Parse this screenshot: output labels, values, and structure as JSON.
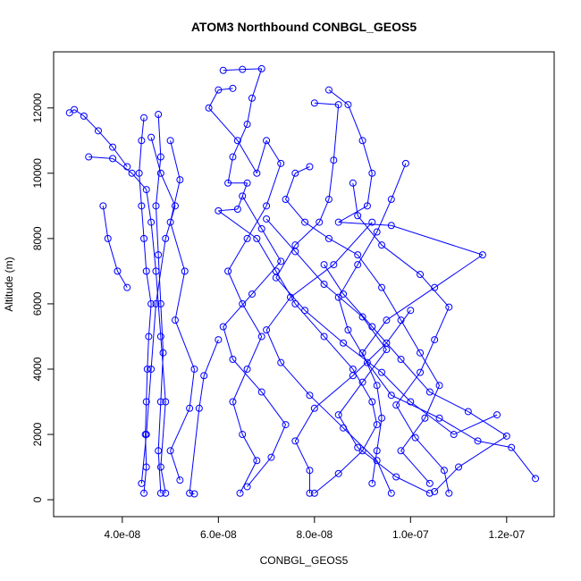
{
  "chart_data": {
    "type": "line",
    "title": "ATOM3 Northbound CONBGL_GEOS5",
    "xlabel": "CONBGL_GEOS5",
    "ylabel": "Altitude (m)",
    "xlim": [
      2.57e-08,
      1.299e-07
    ],
    "ylim": [
      -518,
      13718
    ],
    "xticks": [
      4e-08,
      6e-08,
      8e-08,
      1e-07,
      1.2e-07
    ],
    "xtick_labels": [
      "4.0e-08",
      "6.0e-08",
      "8.0e-08",
      "1.0e-07",
      "1.2e-07"
    ],
    "yticks": [
      0,
      2000,
      4000,
      6000,
      8000,
      10000,
      12000
    ],
    "ytick_labels": [
      "0",
      "2000",
      "4000",
      "6000",
      "8000",
      "10000",
      "12000"
    ],
    "grid": false,
    "marker": "open-circle",
    "color": "#0000ff",
    "profiles": [
      [
        [
          4.45e-08,
          200
        ],
        [
          4.5e-08,
          1000
        ],
        [
          4.48e-08,
          2000
        ],
        [
          4.5e-08,
          3000
        ],
        [
          4.52e-08,
          4000
        ],
        [
          4.55e-08,
          5000
        ],
        [
          4.6e-08,
          6000
        ],
        [
          4.5e-08,
          7000
        ],
        [
          4.45e-08,
          8000
        ],
        [
          4.4e-08,
          9000
        ],
        [
          4.35e-08,
          10000
        ],
        [
          4.4e-08,
          11000
        ],
        [
          4.45e-08,
          11700
        ]
      ],
      [
        [
          4.8e-08,
          200
        ],
        [
          4.75e-08,
          1500
        ],
        [
          4.8e-08,
          3000
        ],
        [
          4.85e-08,
          4500
        ],
        [
          4.8e-08,
          6000
        ],
        [
          4.75e-08,
          7500
        ],
        [
          4.7e-08,
          9000
        ],
        [
          4.8e-08,
          10500
        ],
        [
          4.75e-08,
          11800
        ]
      ],
      [
        [
          2.9e-08,
          11850
        ],
        [
          3e-08,
          11950
        ],
        [
          3.2e-08,
          11750
        ],
        [
          3.5e-08,
          11300
        ],
        [
          3.8e-08,
          10800
        ],
        [
          4.1e-08,
          10200
        ]
      ],
      [
        [
          3.3e-08,
          10500
        ],
        [
          3.8e-08,
          10450
        ],
        [
          4.2e-08,
          10000
        ],
        [
          4.5e-08,
          9500
        ],
        [
          4.6e-08,
          8500
        ],
        [
          4.7e-08,
          7000
        ],
        [
          4.8e-08,
          5000
        ],
        [
          4.9e-08,
          3000
        ],
        [
          4.8e-08,
          1000
        ],
        [
          4.9e-08,
          200
        ]
      ],
      [
        [
          3.6e-08,
          9000
        ],
        [
          3.7e-08,
          8000
        ],
        [
          3.9e-08,
          7000
        ],
        [
          4.1e-08,
          6500
        ]
      ],
      [
        [
          5e-08,
          11000
        ],
        [
          5.2e-08,
          9800
        ],
        [
          5e-08,
          8500
        ],
        [
          5.3e-08,
          7000
        ],
        [
          5.1e-08,
          5500
        ],
        [
          5.5e-08,
          4000
        ],
        [
          5.4e-08,
          2800
        ],
        [
          5e-08,
          1500
        ],
        [
          5.2e-08,
          600
        ]
      ],
      [
        [
          6.1e-08,
          13150
        ],
        [
          6.5e-08,
          13180
        ],
        [
          6.9e-08,
          13200
        ],
        [
          6.7e-08,
          12300
        ],
        [
          6.6e-08,
          11500
        ],
        [
          6.3e-08,
          10500
        ],
        [
          6.2e-08,
          9700
        ],
        [
          6.6e-08,
          9700
        ],
        [
          6.4e-08,
          8900
        ],
        [
          6e-08,
          8850
        ],
        [
          6.8e-08,
          8000
        ],
        [
          7.2e-08,
          7000
        ],
        [
          7.6e-08,
          6000
        ],
        [
          8.2e-08,
          5000
        ],
        [
          8.8e-08,
          4000
        ],
        [
          9.2e-08,
          3000
        ],
        [
          9.3e-08,
          2300
        ],
        [
          9e-08,
          1500
        ],
        [
          8.5e-08,
          800
        ],
        [
          8e-08,
          200
        ]
      ],
      [
        [
          6.3e-08,
          12600
        ],
        [
          6e-08,
          12550
        ],
        [
          5.8e-08,
          12000
        ],
        [
          6.4e-08,
          11000
        ],
        [
          6.8e-08,
          10000
        ],
        [
          7e-08,
          11000
        ],
        [
          7.3e-08,
          10300
        ],
        [
          7e-08,
          9000
        ],
        [
          6.6e-08,
          8000
        ],
        [
          6.2e-08,
          7000
        ],
        [
          6.5e-08,
          6000
        ],
        [
          6.9e-08,
          5000
        ],
        [
          6.6e-08,
          4000
        ],
        [
          6.3e-08,
          3000
        ],
        [
          6.5e-08,
          2000
        ],
        [
          6.8e-08,
          1200
        ],
        [
          6.45e-08,
          200
        ]
      ],
      [
        [
          7.9e-08,
          10200
        ],
        [
          7.6e-08,
          10000
        ],
        [
          7.4e-08,
          9200
        ],
        [
          7.8e-08,
          8500
        ],
        [
          8.3e-08,
          8000
        ],
        [
          8.9e-08,
          7500
        ],
        [
          9.4e-08,
          6500
        ],
        [
          9.8e-08,
          5500
        ],
        [
          1.02e-07,
          4500
        ],
        [
          1.06e-07,
          3500
        ],
        [
          1.03e-07,
          2500
        ],
        [
          9.8e-08,
          1500
        ],
        [
          1.04e-07,
          500
        ]
      ],
      [
        [
          8.3e-08,
          12550
        ],
        [
          8.7e-08,
          12100
        ],
        [
          9e-08,
          11000
        ],
        [
          9.2e-08,
          10000
        ],
        [
          9.1e-08,
          9000
        ],
        [
          8.5e-08,
          8500
        ],
        [
          9.6e-08,
          8400
        ],
        [
          1.15e-07,
          7500
        ],
        [
          1.05e-07,
          6500
        ],
        [
          9.5e-08,
          5500
        ],
        [
          9e-08,
          4500
        ],
        [
          9.3e-08,
          3500
        ],
        [
          9.4e-08,
          2500
        ],
        [
          9.3e-08,
          1500
        ],
        [
          9.2e-08,
          500
        ]
      ],
      [
        [
          8e-08,
          12150
        ],
        [
          8.5e-08,
          12100
        ],
        [
          8.4e-08,
          10400
        ],
        [
          8.3e-08,
          9200
        ],
        [
          8.1e-08,
          8500
        ],
        [
          7.6e-08,
          7800
        ],
        [
          7.2e-08,
          6800
        ],
        [
          7.8e-08,
          5800
        ],
        [
          8.6e-08,
          4800
        ],
        [
          9.4e-08,
          3900
        ],
        [
          1e-07,
          3000
        ],
        [
          1.09e-07,
          2000
        ],
        [
          1.18e-07,
          2600
        ]
      ],
      [
        [
          9.9e-08,
          10300
        ],
        [
          9.6e-08,
          9200
        ],
        [
          9.3e-08,
          8200
        ],
        [
          8.9e-08,
          7200
        ],
        [
          8.5e-08,
          6200
        ],
        [
          8.7e-08,
          5200
        ],
        [
          9.1e-08,
          4200
        ],
        [
          9.6e-08,
          3200
        ],
        [
          1.06e-07,
          2500
        ],
        [
          1.14e-07,
          1800
        ],
        [
          1.21e-07,
          1600
        ],
        [
          1.26e-07,
          650
        ]
      ],
      [
        [
          6e-08,
          4900
        ],
        [
          5.7e-08,
          3800
        ],
        [
          5.6e-08,
          2800
        ],
        [
          5.4e-08,
          200
        ],
        [
          5.5e-08,
          180
        ]
      ],
      [
        [
          1e-07,
          5800
        ],
        [
          9.5e-08,
          4800
        ],
        [
          8.8e-08,
          3800
        ],
        [
          8e-08,
          2800
        ],
        [
          7.6e-08,
          1800
        ],
        [
          7.9e-08,
          900
        ],
        [
          7.9e-08,
          200
        ]
      ],
      [
        [
          9.2e-08,
          8500
        ],
        [
          8.4e-08,
          7200
        ],
        [
          7.5e-08,
          6200
        ],
        [
          7e-08,
          5200
        ],
        [
          7.3e-08,
          4200
        ],
        [
          7.9e-08,
          3200
        ],
        [
          8.6e-08,
          2200
        ],
        [
          9.3e-08,
          1200
        ],
        [
          9.6e-08,
          200
        ]
      ],
      [
        [
          8.8e-08,
          9700
        ],
        [
          8.9e-08,
          8700
        ],
        [
          9.4e-08,
          7800
        ],
        [
          1.02e-07,
          6900
        ],
        [
          1.08e-07,
          5900
        ],
        [
          1.05e-07,
          4900
        ],
        [
          1.02e-07,
          3900
        ],
        [
          9.7e-08,
          2900
        ],
        [
          1.01e-07,
          1900
        ],
        [
          1.07e-07,
          900
        ],
        [
          1.08e-07,
          200
        ]
      ],
      [
        [
          7e-08,
          8600
        ],
        [
          7.6e-08,
          7600
        ],
        [
          8.2e-08,
          6600
        ],
        [
          9e-08,
          5600
        ],
        [
          9.5e-08,
          4600
        ],
        [
          9e-08,
          3600
        ],
        [
          8.5e-08,
          2600
        ],
        [
          8.9e-08,
          1600
        ],
        [
          9.7e-08,
          700
        ],
        [
          1.04e-07,
          200
        ]
      ],
      [
        [
          6.5e-08,
          9300
        ],
        [
          6.9e-08,
          8300
        ],
        [
          7.3e-08,
          7300
        ],
        [
          6.7e-08,
          6300
        ],
        [
          6.1e-08,
          5300
        ],
        [
          6.3e-08,
          4300
        ],
        [
          6.9e-08,
          3300
        ],
        [
          7.4e-08,
          2300
        ],
        [
          7.1e-08,
          1300
        ],
        [
          6.6e-08,
          400
        ]
      ],
      [
        [
          4.6e-08,
          11100
        ],
        [
          4.8e-08,
          10000
        ],
        [
          5.1e-08,
          9000
        ],
        [
          4.9e-08,
          8000
        ],
        [
          4.7e-08,
          6000
        ],
        [
          4.6e-08,
          4000
        ],
        [
          4.5e-08,
          2000
        ],
        [
          4.4e-08,
          500
        ]
      ],
      [
        [
          8.2e-08,
          7200
        ],
        [
          8.6e-08,
          6300
        ],
        [
          9.2e-08,
          5300
        ],
        [
          9.8e-08,
          4300
        ],
        [
          1.04e-07,
          3300
        ],
        [
          1.12e-07,
          2700
        ],
        [
          1.2e-07,
          1950
        ],
        [
          1.1e-07,
          1000
        ],
        [
          1.05e-07,
          250
        ]
      ]
    ]
  }
}
